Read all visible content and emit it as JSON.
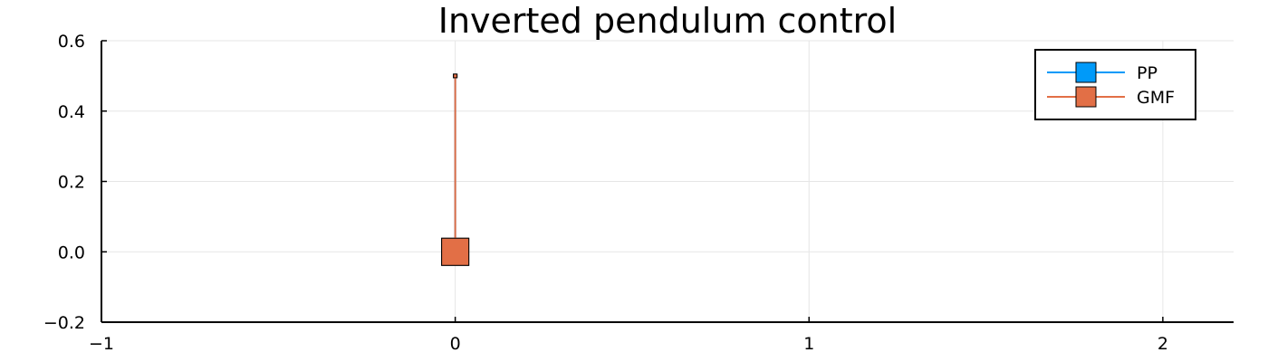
{
  "chart_data": {
    "type": "line",
    "title": "Inverted pendulum control",
    "xlabel": "",
    "ylabel": "",
    "xlim": [
      -1,
      2.2
    ],
    "ylim": [
      -0.2,
      0.6
    ],
    "xticks": [
      -1,
      0,
      1,
      2
    ],
    "xtick_labels": [
      "−1",
      "0",
      "1",
      "2"
    ],
    "yticks": [
      -0.2,
      0.0,
      0.2,
      0.4,
      0.6
    ],
    "ytick_labels": [
      "−0.2",
      "0.0",
      "0.2",
      "0.4",
      "0.6"
    ],
    "grid": true,
    "legend_position": "top-right",
    "series": [
      {
        "name": "PP",
        "color": "#009af9",
        "points": [
          {
            "x": 0,
            "y": 0
          },
          {
            "x": 0,
            "y": 0.5
          }
        ],
        "markers": [
          "cart-square",
          "tip-square"
        ]
      },
      {
        "name": "GMF",
        "color": "#e26f46",
        "points": [
          {
            "x": 0,
            "y": 0
          },
          {
            "x": 0,
            "y": 0.5
          }
        ],
        "markers": [
          "cart-square",
          "tip-square"
        ]
      }
    ]
  }
}
